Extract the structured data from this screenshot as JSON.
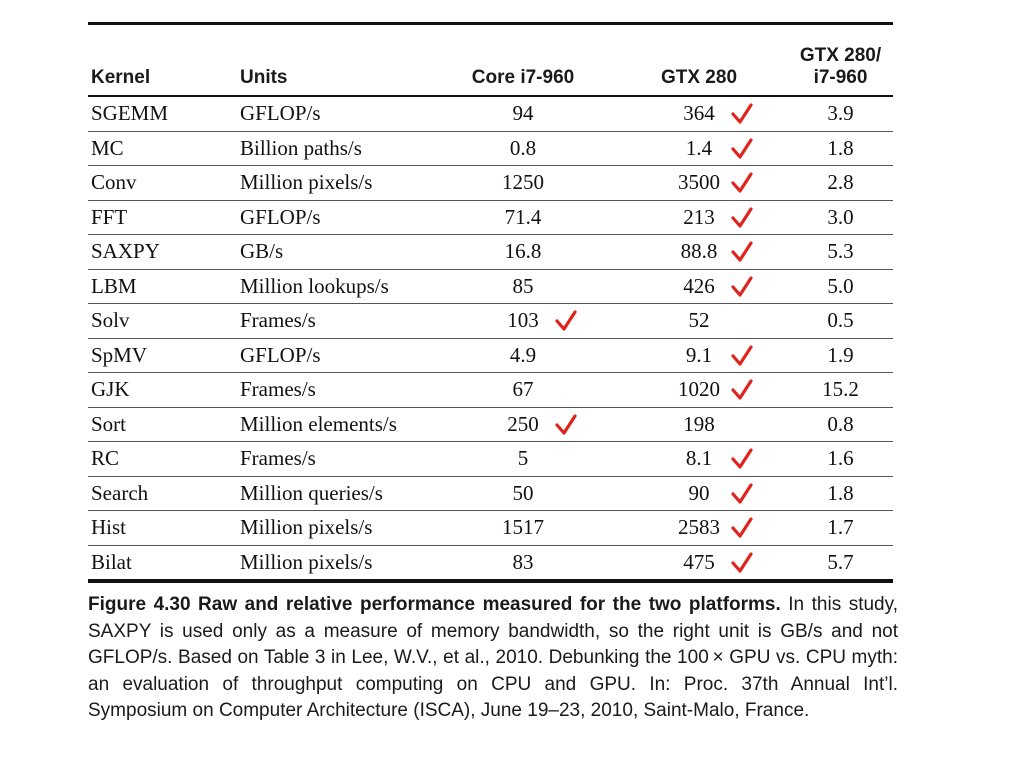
{
  "table": {
    "headers": {
      "kernel": "Kernel",
      "units": "Units",
      "core": "Core i7-960",
      "gtx": "GTX 280",
      "ratio_line1": "GTX 280/",
      "ratio_line2": "i7-960"
    },
    "rows": [
      {
        "kernel": "SGEMM",
        "units": "GFLOP/s",
        "core": "94",
        "gtx": "364",
        "ratio": "3.9",
        "check": "gtx"
      },
      {
        "kernel": "MC",
        "units": "Billion paths/s",
        "core": "0.8",
        "gtx": "1.4",
        "ratio": "1.8",
        "check": "gtx"
      },
      {
        "kernel": "Conv",
        "units": "Million pixels/s",
        "core": "1250",
        "gtx": "3500",
        "ratio": "2.8",
        "check": "gtx"
      },
      {
        "kernel": "FFT",
        "units": "GFLOP/s",
        "core": "71.4",
        "gtx": "213",
        "ratio": "3.0",
        "check": "gtx"
      },
      {
        "kernel": "SAXPY",
        "units": "GB/s",
        "core": "16.8",
        "gtx": "88.8",
        "ratio": "5.3",
        "check": "gtx"
      },
      {
        "kernel": "LBM",
        "units": "Million lookups/s",
        "core": "85",
        "gtx": "426",
        "ratio": "5.0",
        "check": "gtx"
      },
      {
        "kernel": "Solv",
        "units": "Frames/s",
        "core": "103",
        "gtx": "52",
        "ratio": "0.5",
        "check": "core"
      },
      {
        "kernel": "SpMV",
        "units": "GFLOP/s",
        "core": "4.9",
        "gtx": "9.1",
        "ratio": "1.9",
        "check": "gtx"
      },
      {
        "kernel": "GJK",
        "units": "Frames/s",
        "core": "67",
        "gtx": "1020",
        "ratio": "15.2",
        "check": "gtx"
      },
      {
        "kernel": "Sort",
        "units": "Million elements/s",
        "core": "250",
        "gtx": "198",
        "ratio": "0.8",
        "check": "core"
      },
      {
        "kernel": "RC",
        "units": "Frames/s",
        "core": "5",
        "gtx": "8.1",
        "ratio": "1.6",
        "check": "gtx"
      },
      {
        "kernel": "Search",
        "units": "Million queries/s",
        "core": "50",
        "gtx": "90",
        "ratio": "1.8",
        "check": "gtx"
      },
      {
        "kernel": "Hist",
        "units": "Million pixels/s",
        "core": "1517",
        "gtx": "2583",
        "ratio": "1.7",
        "check": "gtx"
      },
      {
        "kernel": "Bilat",
        "units": "Million pixels/s",
        "core": "83",
        "gtx": "475",
        "ratio": "5.7",
        "check": "gtx"
      }
    ]
  },
  "caption": {
    "label": "Figure 4.30 Raw and relative performance measured for the two platforms.",
    "text": "In this study, SAXPY is used only as a measure of memory bandwidth, so the right unit is GB/s and not GFLOP/s. Based on Table 3 in Lee, W.V., et al., 2010. Debunking the 100 × GPU vs. CPU myth: an evaluation of throughput computing on CPU and GPU. In: Proc. 37th Annual Int’l. Symposium on Computer Architecture (ISCA), June 19–23, 2010, Saint-Malo, France."
  },
  "colors": {
    "checkmark": "#e0231c",
    "text": "#111111"
  },
  "icons": {
    "checkmark": "checkmark-icon"
  }
}
